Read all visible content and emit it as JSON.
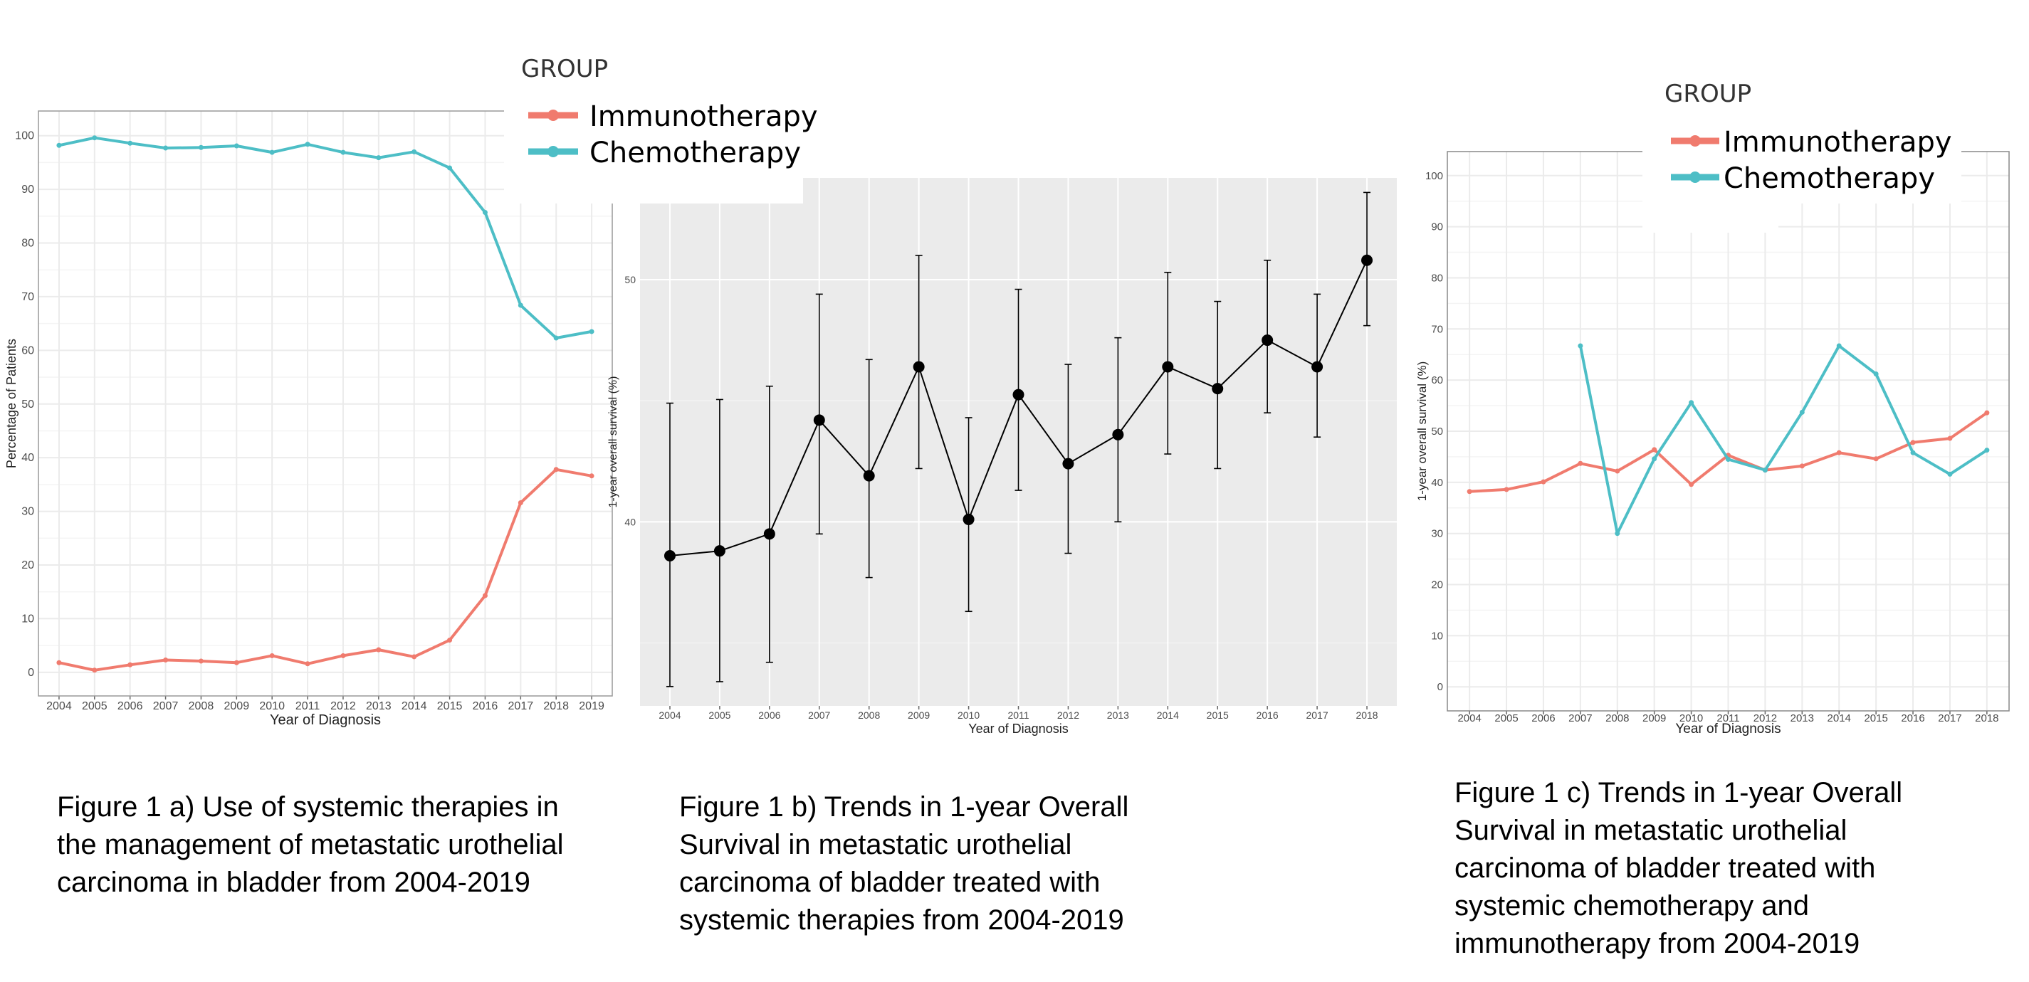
{
  "legend_a": {
    "title": "GROUP",
    "entries": [
      {
        "label": "Immunotherapy",
        "color": "#F07B6E"
      },
      {
        "label": "Chemotherapy",
        "color": "#4DBEC6"
      }
    ]
  },
  "legend_c": {
    "title": "GROUP",
    "entries": [
      {
        "label": "Immunotherapy",
        "color": "#F07B6E"
      },
      {
        "label": "Chemotherapy",
        "color": "#4DBEC6"
      }
    ]
  },
  "captions": {
    "a": [
      "Figure 1 a) Use of systemic therapies in",
      "the management of metastatic urothelial",
      "carcinoma in bladder from 2004-2019"
    ],
    "b": [
      "Figure 1 b) Trends in 1-year Overall",
      "Survival in metastatic urothelial",
      "carcinoma of bladder treated with",
      "systemic therapies from 2004-2019"
    ],
    "c": [
      "Figure 1 c) Trends in 1-year Overall",
      "Survival in metastatic urothelial",
      "carcinoma of bladder treated with",
      "systemic chemotherapy and",
      "immunotherapy from 2004-2019"
    ]
  },
  "chart_data": [
    {
      "type": "line",
      "xlabel": "Year of Diagnosis",
      "ylabel": "Percentage of Patients",
      "x": [
        2004,
        2005,
        2006,
        2007,
        2008,
        2009,
        2010,
        2011,
        2012,
        2013,
        2014,
        2015,
        2016,
        2017,
        2018,
        2019
      ],
      "xtick_labels": [
        "2004",
        "2005",
        "2006",
        "2007",
        "2008",
        "2009",
        "2010",
        "2011",
        "2012",
        "2013",
        "2014",
        "2015",
        "2016",
        "2017",
        "2018",
        "2019"
      ],
      "ytick_labels": [
        "0",
        "10",
        "20",
        "30",
        "40",
        "50",
        "60",
        "70",
        "80",
        "90",
        "100"
      ],
      "ylim": [
        -4.4,
        104.6
      ],
      "grid": true,
      "legend": "top-right, outside",
      "series": [
        {
          "name": "Immunotherapy",
          "color": "#F07B6E",
          "values": [
            1.8,
            0.4,
            1.4,
            2.3,
            2.1,
            1.8,
            3.1,
            1.6,
            3.1,
            4.2,
            2.9,
            6.0,
            14.3,
            31.6,
            37.8,
            36.6
          ]
        },
        {
          "name": "Chemotherapy",
          "color": "#4DBEC6",
          "values": [
            98.2,
            99.6,
            98.6,
            97.7,
            97.8,
            98.1,
            96.9,
            98.4,
            96.9,
            95.9,
            97.0,
            94.0,
            85.7,
            68.4,
            62.3,
            63.5
          ]
        }
      ]
    },
    {
      "type": "line",
      "xlabel": "Year of Diagnosis",
      "ylabel": "1-year overall survival (%)",
      "x": [
        2004,
        2005,
        2006,
        2007,
        2008,
        2009,
        2010,
        2011,
        2012,
        2013,
        2014,
        2015,
        2016,
        2017,
        2018
      ],
      "xtick_labels": [
        "2004",
        "2005",
        "2006",
        "2007",
        "2008",
        "2009",
        "2010",
        "2011",
        "2012",
        "2013",
        "2014",
        "2015",
        "2016",
        "2017",
        "2018"
      ],
      "ytick_labels": [
        "40",
        "50"
      ],
      "ylim": [
        32.4,
        54.2
      ],
      "grid": true,
      "background": "#EBEBEB",
      "series": [
        {
          "color": "#000000",
          "values": [
            38.6,
            38.8,
            39.5,
            44.2,
            41.9,
            46.4,
            40.1,
            45.25,
            42.4,
            43.6,
            46.4,
            45.5,
            47.5,
            46.4,
            50.8
          ],
          "error_lower": [
            33.2,
            33.4,
            34.2,
            39.5,
            37.7,
            42.2,
            36.3,
            41.3,
            38.7,
            40.0,
            42.8,
            42.2,
            44.5,
            43.5,
            48.1
          ],
          "error_upper": [
            44.9,
            45.05,
            45.6,
            49.4,
            46.7,
            51.0,
            44.3,
            49.6,
            46.5,
            47.6,
            50.3,
            49.1,
            50.8,
            49.4,
            53.6
          ]
        }
      ]
    },
    {
      "type": "line",
      "xlabel": "Year of Diagnosis",
      "ylabel": "1-year overall survival (%)",
      "x": [
        2004,
        2005,
        2006,
        2007,
        2008,
        2009,
        2010,
        2011,
        2012,
        2013,
        2014,
        2015,
        2016,
        2017,
        2018
      ],
      "xtick_labels": [
        "2004",
        "2005",
        "2006",
        "2007",
        "2008",
        "2009",
        "2010",
        "2011",
        "2012",
        "2013",
        "2014",
        "2015",
        "2016",
        "2017",
        "2018"
      ],
      "ytick_labels": [
        "0",
        "10",
        "20",
        "30",
        "40",
        "50",
        "60",
        "70",
        "80",
        "90",
        "100"
      ],
      "ylim": [
        -4.7,
        104.7
      ],
      "grid": true,
      "legend": "top-right, inside",
      "series": [
        {
          "name": "Immunotherapy",
          "color": "#F07B6E",
          "values": [
            38.2,
            38.6,
            40.1,
            43.7,
            42.2,
            46.4,
            39.6,
            45.3,
            42.4,
            43.2,
            45.8,
            44.6,
            47.8,
            48.6,
            53.6
          ]
        },
        {
          "name": "Chemotherapy",
          "color": "#4DBEC6",
          "values": [
            null,
            null,
            null,
            66.7,
            30.0,
            44.6,
            55.6,
            44.5,
            42.4,
            53.7,
            66.7,
            61.2,
            45.8,
            41.6,
            46.3
          ]
        }
      ]
    }
  ]
}
